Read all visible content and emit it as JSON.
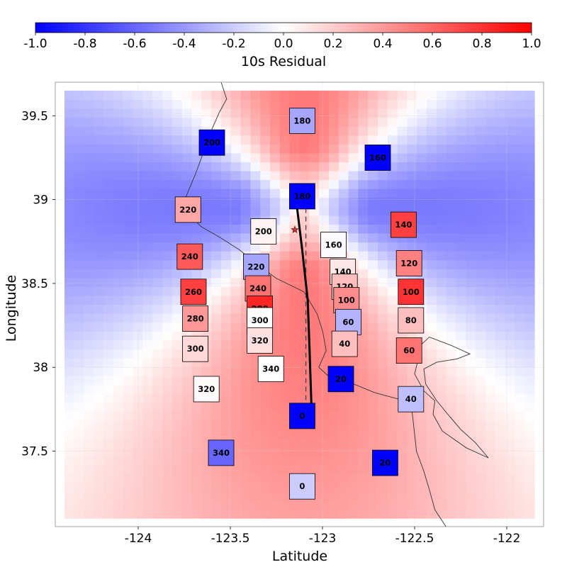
{
  "chart_data": {
    "type": "heatmap",
    "colorbar": {
      "label": "10s Residual",
      "range": [
        -1.0,
        1.0
      ],
      "ticks": [
        "-1.0",
        "-0.8",
        "-0.6",
        "-0.4",
        "-0.2",
        "0.0",
        "0.2",
        "0.4",
        "0.6",
        "0.8",
        "1.0"
      ],
      "colors": {
        "low": "#0000ff",
        "mid": "#ffffff",
        "high": "#ff0000"
      }
    },
    "xlabel": "Latitude",
    "ylabel": "Longitude",
    "xlim": [
      -124.45,
      -121.8
    ],
    "ylim": [
      37.05,
      39.7
    ],
    "xticks": [
      -124,
      -123.5,
      -123,
      -122.5,
      -122
    ],
    "xtick_labels": [
      "-124",
      "-123.5",
      "-123",
      "-122.5",
      "-122"
    ],
    "yticks": [
      37.5,
      38,
      38.5,
      39,
      39.5
    ],
    "ytick_labels": [
      "37.5",
      "38",
      "38.5",
      "39",
      "39.5"
    ],
    "field_extent": {
      "x": [
        -124.4,
        -121.85
      ],
      "y": [
        37.1,
        39.65
      ]
    },
    "stations": [
      {
        "label": "180",
        "x": -123.11,
        "y": 39.47,
        "value": -0.35
      },
      {
        "label": "200",
        "x": -123.6,
        "y": 39.34,
        "value": -1.0
      },
      {
        "label": "160",
        "x": -122.7,
        "y": 39.25,
        "value": -1.0
      },
      {
        "label": "180",
        "x": -123.11,
        "y": 39.02,
        "value": -1.0
      },
      {
        "label": "220",
        "x": -123.73,
        "y": 38.94,
        "value": 0.35
      },
      {
        "label": "140",
        "x": -122.56,
        "y": 38.85,
        "value": 0.75
      },
      {
        "label": "200",
        "x": -123.32,
        "y": 38.81,
        "value": 0.05
      },
      {
        "label": "160",
        "x": -122.94,
        "y": 38.73,
        "value": -0.02
      },
      {
        "label": "240",
        "x": -123.72,
        "y": 38.66,
        "value": 0.65
      },
      {
        "label": "120",
        "x": -122.53,
        "y": 38.62,
        "value": 0.5
      },
      {
        "label": "220",
        "x": -123.36,
        "y": 38.6,
        "value": -0.35
      },
      {
        "label": "140",
        "x": -122.89,
        "y": 38.57,
        "value": 0.1
      },
      {
        "label": "260",
        "x": -123.7,
        "y": 38.45,
        "value": 0.75
      },
      {
        "label": "240",
        "x": -123.35,
        "y": 38.47,
        "value": 0.55
      },
      {
        "label": "120",
        "x": -122.88,
        "y": 38.48,
        "value": 0.25
      },
      {
        "label": "100",
        "x": -122.52,
        "y": 38.45,
        "value": 0.8
      },
      {
        "label": "100",
        "x": -122.87,
        "y": 38.4,
        "value": 0.45
      },
      {
        "label": "280",
        "x": -123.34,
        "y": 38.35,
        "value": 0.85
      },
      {
        "label": "300",
        "x": -123.34,
        "y": 38.28,
        "value": 0.0
      },
      {
        "label": "280",
        "x": -123.69,
        "y": 38.29,
        "value": 0.4
      },
      {
        "label": "60",
        "x": -122.86,
        "y": 38.27,
        "value": -0.3
      },
      {
        "label": "80",
        "x": -122.52,
        "y": 38.28,
        "value": 0.25
      },
      {
        "label": "320",
        "x": -123.34,
        "y": 38.16,
        "value": 0.12
      },
      {
        "label": "40",
        "x": -122.88,
        "y": 38.14,
        "value": 0.25
      },
      {
        "label": "300",
        "x": -123.69,
        "y": 38.11,
        "value": 0.15
      },
      {
        "label": "60",
        "x": -122.53,
        "y": 38.1,
        "value": 0.55
      },
      {
        "label": "340",
        "x": -123.28,
        "y": 37.99,
        "value": 0.0
      },
      {
        "label": "20",
        "x": -122.9,
        "y": 37.93,
        "value": -1.0
      },
      {
        "label": "320",
        "x": -123.63,
        "y": 37.87,
        "value": 0.02
      },
      {
        "label": "40",
        "x": -122.52,
        "y": 37.81,
        "value": -0.25
      },
      {
        "label": "0",
        "x": -123.11,
        "y": 37.71,
        "value": -1.0
      },
      {
        "label": "340",
        "x": -123.55,
        "y": 37.49,
        "value": -0.6
      },
      {
        "label": "20",
        "x": -122.66,
        "y": 37.43,
        "value": -1.0
      },
      {
        "label": "0",
        "x": -123.11,
        "y": 37.29,
        "value": -0.2
      }
    ],
    "rupture_trace": [
      [
        -123.14,
        38.97
      ],
      [
        -123.11,
        38.7
      ],
      [
        -123.08,
        38.4
      ],
      [
        -123.07,
        38.1
      ],
      [
        -123.06,
        37.77
      ]
    ],
    "rupture_dashed": [
      [
        -123.09,
        38.95
      ],
      [
        -123.09,
        37.77
      ]
    ],
    "epicenter": {
      "x": -123.15,
      "y": 38.82
    },
    "coastline": [
      [
        -123.55,
        39.7
      ],
      [
        -123.52,
        39.6
      ],
      [
        -123.56,
        39.52
      ],
      [
        -123.6,
        39.42
      ],
      [
        -123.64,
        39.3
      ],
      [
        -123.69,
        39.15
      ],
      [
        -123.74,
        39.02
      ],
      [
        -123.73,
        38.92
      ],
      [
        -123.66,
        38.84
      ],
      [
        -123.55,
        38.77
      ],
      [
        -123.45,
        38.7
      ],
      [
        -123.35,
        38.61
      ],
      [
        -123.25,
        38.53
      ],
      [
        -123.1,
        38.45
      ],
      [
        -123.03,
        38.32
      ],
      [
        -123.0,
        38.22
      ],
      [
        -122.98,
        38.1
      ],
      [
        -123.02,
        38.0
      ],
      [
        -122.97,
        37.95
      ],
      [
        -122.83,
        37.9
      ],
      [
        -122.72,
        37.85
      ],
      [
        -122.62,
        37.82
      ],
      [
        -122.52,
        37.79
      ],
      [
        -122.51,
        37.7
      ],
      [
        -122.5,
        37.6
      ],
      [
        -122.49,
        37.5
      ],
      [
        -122.45,
        37.38
      ],
      [
        -122.42,
        37.27
      ],
      [
        -122.39,
        37.15
      ],
      [
        -122.33,
        37.05
      ]
    ],
    "bay_shore": [
      [
        -122.48,
        38.12
      ],
      [
        -122.42,
        38.18
      ],
      [
        -122.3,
        38.13
      ],
      [
        -122.2,
        38.08
      ],
      [
        -122.27,
        38.05
      ],
      [
        -122.38,
        38.03
      ],
      [
        -122.45,
        37.99
      ],
      [
        -122.44,
        37.9
      ],
      [
        -122.38,
        37.8
      ],
      [
        -122.32,
        37.72
      ],
      [
        -122.25,
        37.63
      ],
      [
        -122.17,
        37.55
      ],
      [
        -122.1,
        37.46
      ],
      [
        -122.22,
        37.52
      ],
      [
        -122.35,
        37.62
      ],
      [
        -122.4,
        37.72
      ],
      [
        -122.39,
        37.8
      ],
      [
        -122.45,
        37.86
      ],
      [
        -122.5,
        37.96
      ],
      [
        -122.48,
        38.05
      ]
    ]
  }
}
